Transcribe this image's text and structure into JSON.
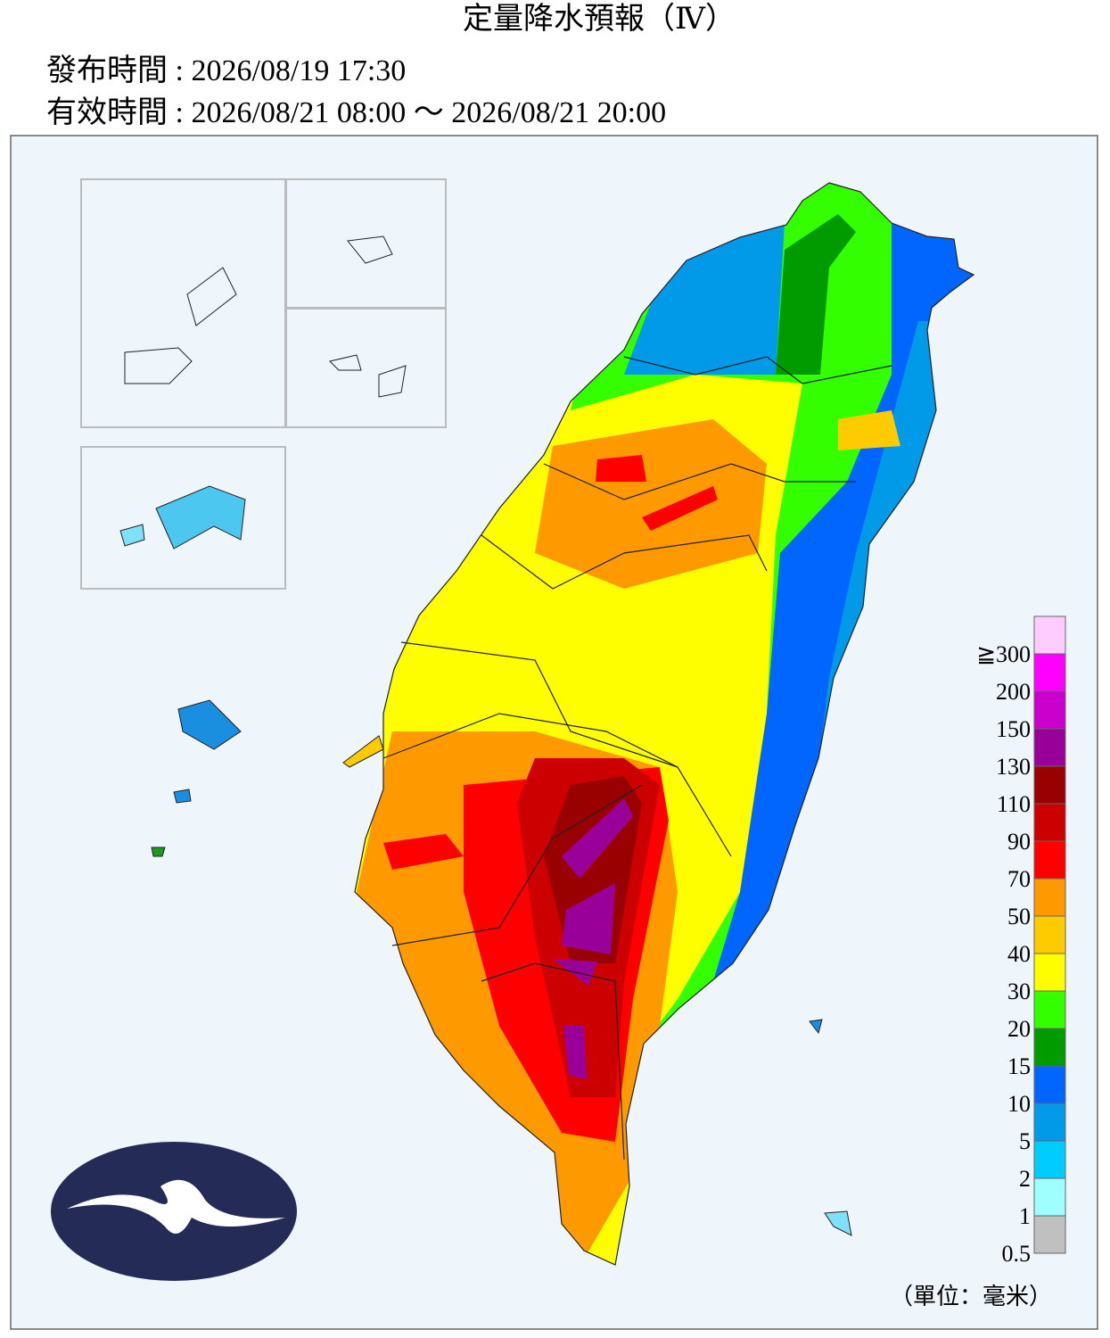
{
  "header": {
    "title": "定量降水預報（Ⅳ）",
    "issued": "發布時間 : 2026/08/19 17:30",
    "valid": "有效時間 : 2026/08/21 08:00 ～ 2026/08/21 20:00"
  },
  "legend": {
    "labels": [
      "0.5",
      "1",
      "2",
      "5",
      "10",
      "15",
      "20",
      "30",
      "40",
      "50",
      "70",
      "90",
      "110",
      "130",
      "150",
      "200",
      "≧300"
    ],
    "colors": [
      "#c0c0c0",
      "#9ffffe",
      "#00ccfe",
      "#019ae9",
      "#0166fe",
      "#019b00",
      "#33ff00",
      "#fffe00",
      "#fecb00",
      "#fe9900",
      "#fe0000",
      "#cc0000",
      "#990000",
      "#990099",
      "#cc00cc",
      "#fe00ff",
      "#ffccfe"
    ],
    "unit": "（單位：毫米）"
  }
}
